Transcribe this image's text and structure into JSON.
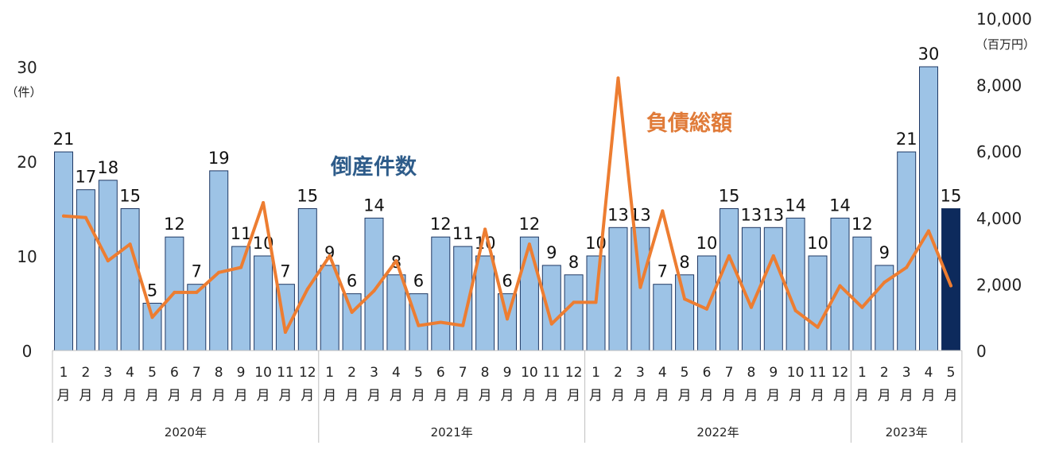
{
  "chart_data": {
    "type": "bar",
    "title": "",
    "xlabel": "",
    "left_axis": {
      "ticks": [
        "0",
        "10",
        "20",
        "30"
      ],
      "unit": "（件）",
      "ylim": [
        0,
        35
      ]
    },
    "right_axis": {
      "ticks": [
        "0",
        "2,000",
        "4,000",
        "6,000",
        "8,000",
        "10,000"
      ],
      "unit": "（百万円）",
      "ylim": [
        0,
        10000
      ]
    },
    "month_labels": [
      "1",
      "2",
      "3",
      "4",
      "5",
      "6",
      "7",
      "8",
      "9",
      "10",
      "11",
      "12",
      "1",
      "2",
      "3",
      "4",
      "5",
      "6",
      "7",
      "8",
      "9",
      "10",
      "11",
      "12",
      "1",
      "2",
      "3",
      "4",
      "5",
      "6",
      "7",
      "8",
      "9",
      "10",
      "11",
      "12",
      "1",
      "2",
      "3",
      "4",
      "5"
    ],
    "month_suffix": "月",
    "year_groups": [
      {
        "label": "2020年",
        "count": 12
      },
      {
        "label": "2021年",
        "count": 12
      },
      {
        "label": "2022年",
        "count": 12
      },
      {
        "label": "2023年",
        "count": 5
      }
    ],
    "series": [
      {
        "name": "倒産件数",
        "type": "bar",
        "axis": "left",
        "color": "#9dc3e6",
        "highlight_color": "#0d2a5c",
        "highlight_last": true,
        "values": [
          21,
          17,
          18,
          15,
          5,
          12,
          7,
          19,
          11,
          10,
          7,
          15,
          9,
          6,
          14,
          8,
          6,
          12,
          11,
          10,
          6,
          12,
          9,
          8,
          10,
          13,
          13,
          7,
          8,
          10,
          15,
          13,
          13,
          14,
          10,
          14,
          12,
          9,
          21,
          30,
          15
        ]
      },
      {
        "name": "負債総額",
        "type": "line",
        "axis": "right",
        "color": "#ed7d31",
        "values": [
          4050,
          4000,
          2700,
          3200,
          1000,
          1750,
          1750,
          2350,
          2500,
          4450,
          550,
          1850,
          2850,
          1150,
          1800,
          2700,
          750,
          850,
          750,
          3650,
          950,
          3200,
          800,
          1450,
          1450,
          8200,
          1900,
          4200,
          1550,
          1250,
          2850,
          1300,
          2850,
          1200,
          700,
          1950,
          1300,
          2050,
          2500,
          3600,
          1950
        ]
      }
    ],
    "series_labels": {
      "bar": "倒産件数",
      "bar_color": "#2e5c8a",
      "line": "負債総額",
      "line_color": "#e07b39"
    },
    "grid": false
  }
}
